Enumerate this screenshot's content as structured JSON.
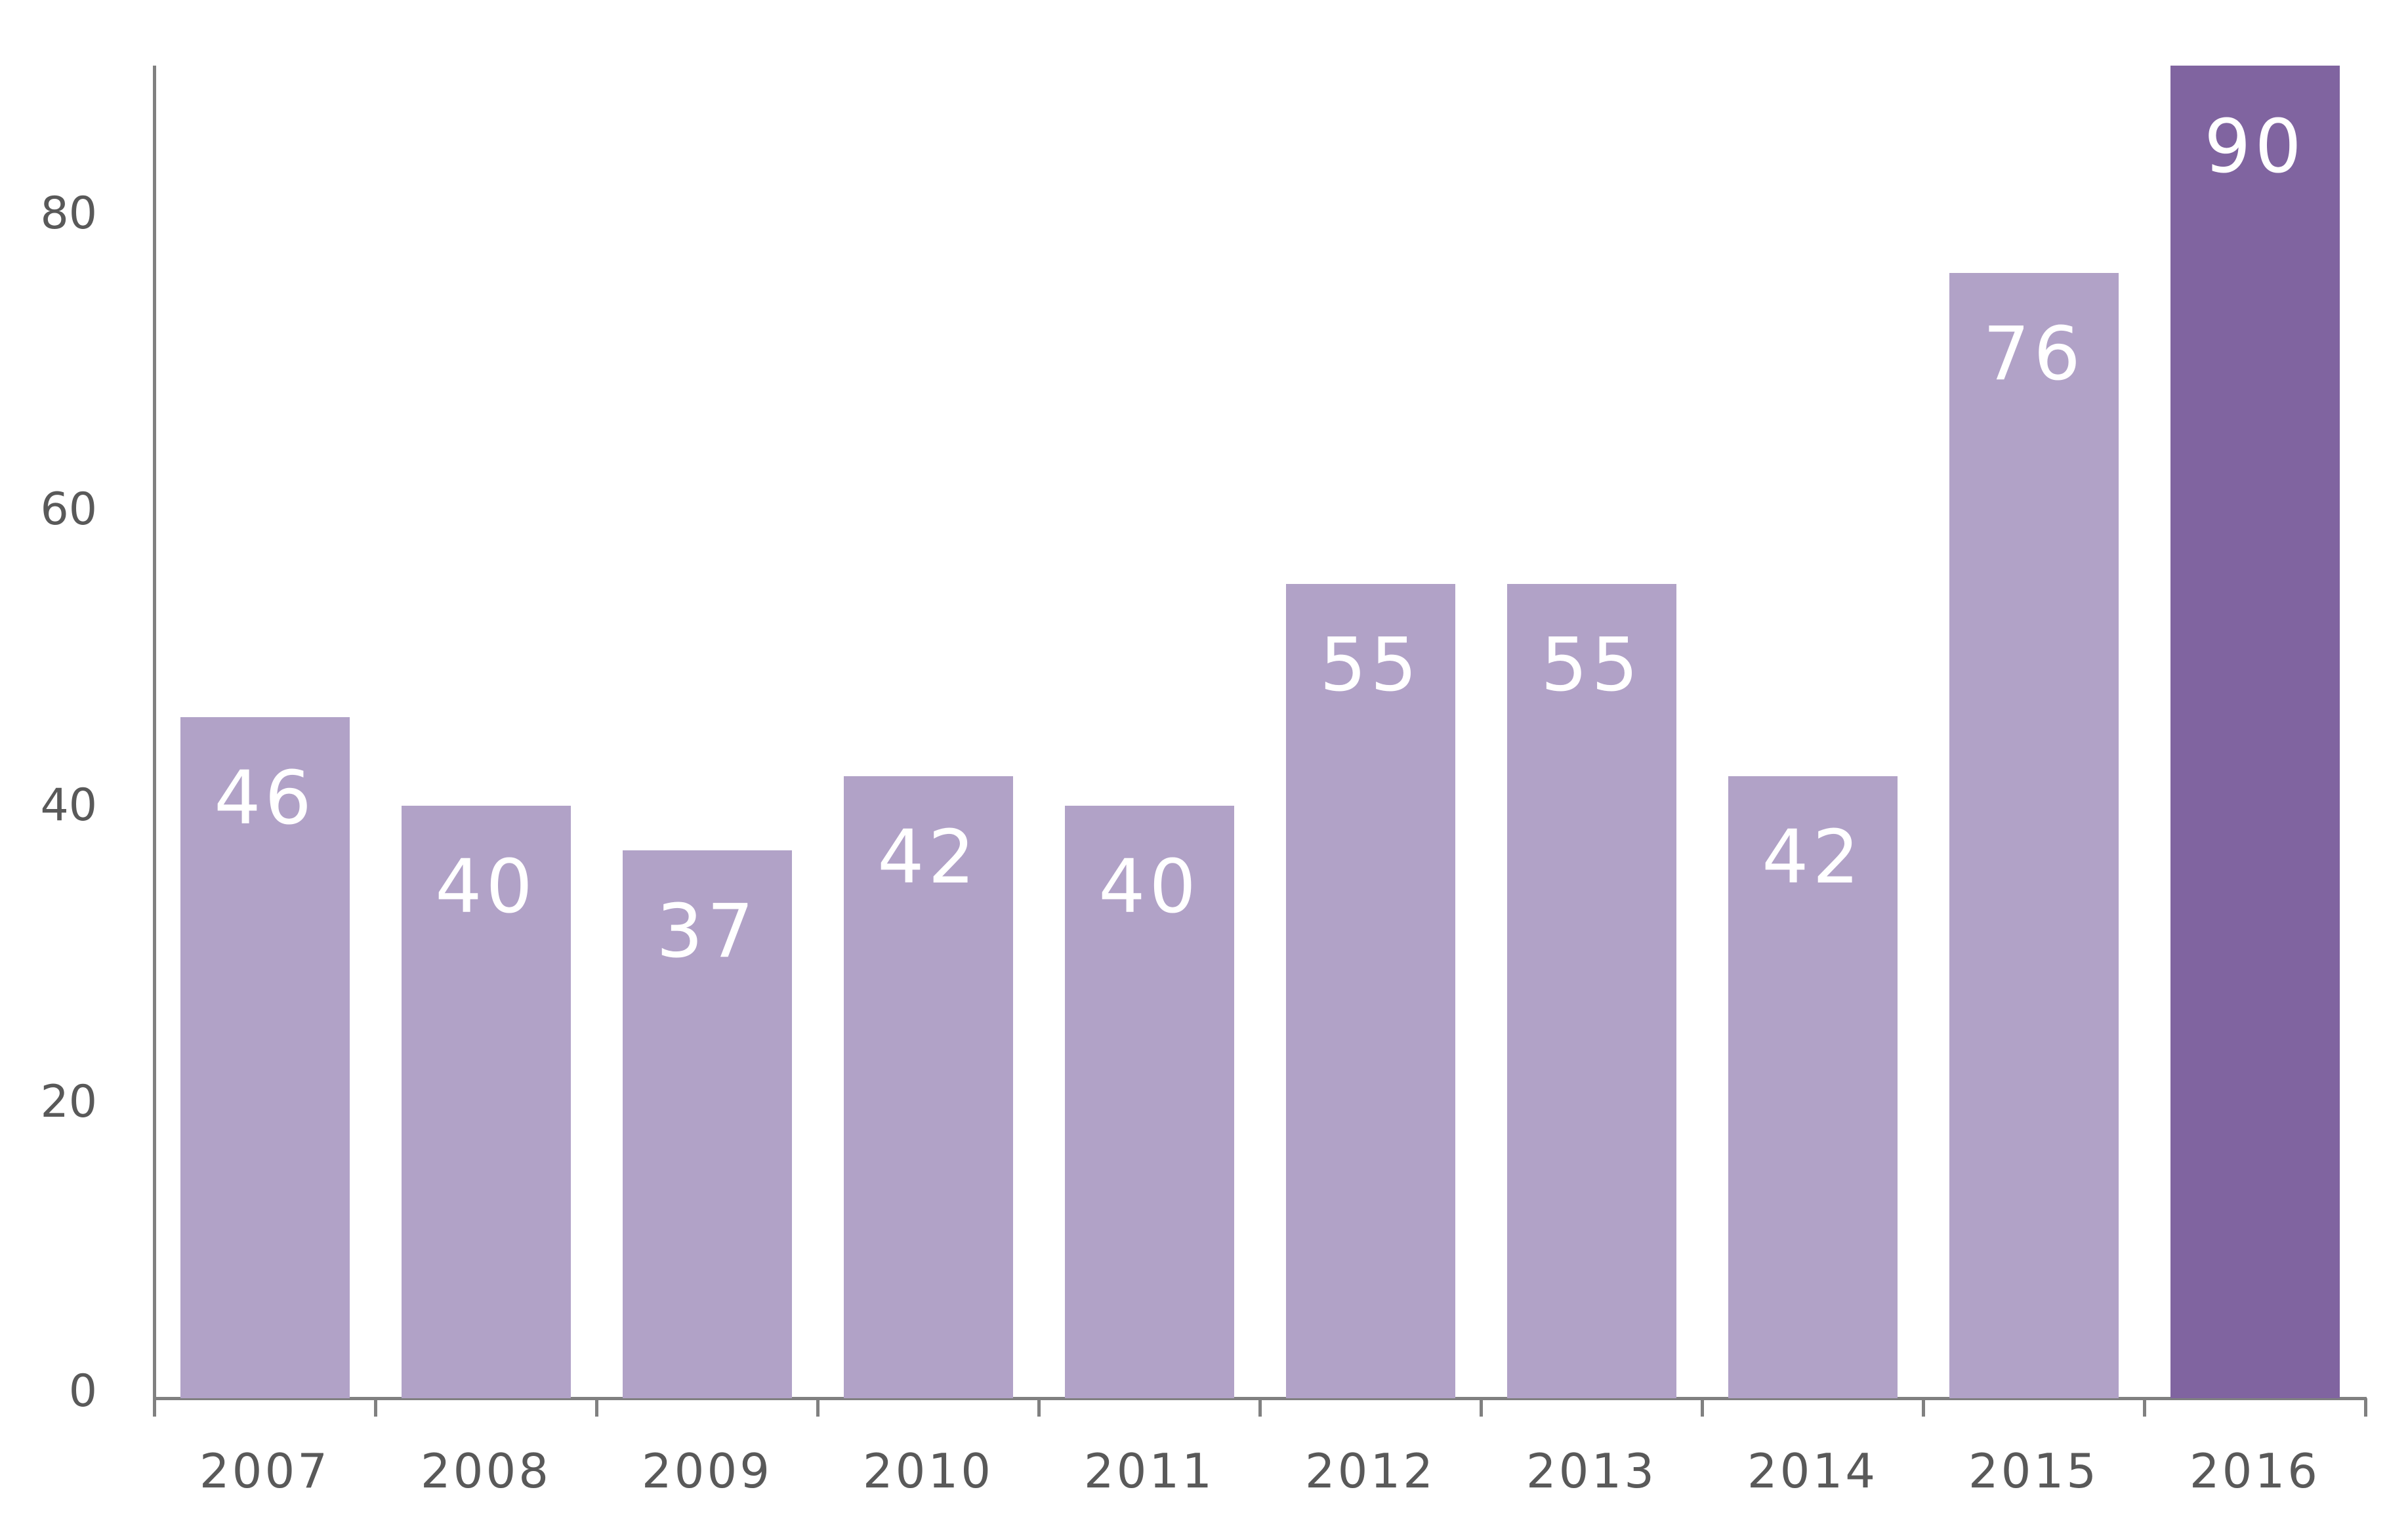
{
  "chart_data": {
    "type": "bar",
    "title": "",
    "xlabel": "",
    "ylabel": "",
    "categories": [
      "2007",
      "2008",
      "2009",
      "2010",
      "2011",
      "2012",
      "2013",
      "2014",
      "2015",
      "2016"
    ],
    "values": [
      46,
      40,
      37,
      42,
      40,
      55,
      55,
      42,
      76,
      90
    ],
    "data_labels": [
      "46",
      "40",
      "37",
      "42",
      "40",
      "55",
      "55",
      "42",
      "76",
      "90"
    ],
    "ylim": [
      0,
      90
    ],
    "yticks": [
      0,
      20,
      40,
      60,
      80
    ],
    "ytick_labels": [
      "0",
      "20",
      "40",
      "60",
      "80"
    ],
    "grid": false,
    "legend": null,
    "colors": {
      "default_bar": "#B1A2C7",
      "highlight_bar": "#8064A0",
      "highlight_category": "2016",
      "axis": "#808080",
      "tick_text": "#595959",
      "data_label_text": "#FFFFFF"
    }
  }
}
